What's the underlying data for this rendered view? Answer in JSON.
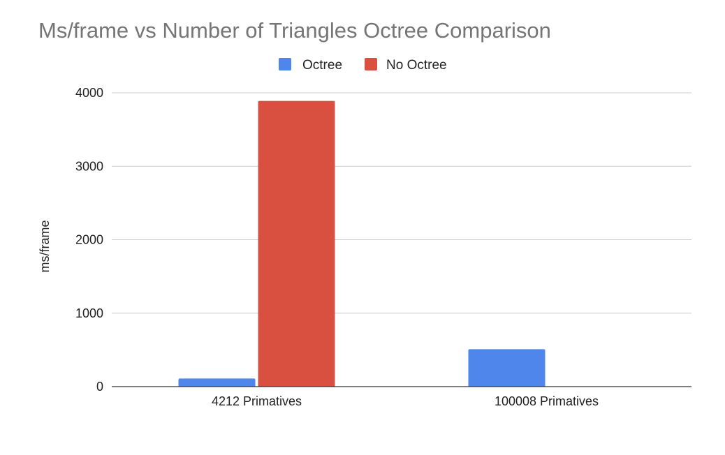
{
  "chart_data": {
    "type": "bar",
    "title": "Ms/frame vs Number of Triangles Octree Comparison",
    "xlabel": "",
    "ylabel": "ms/frame",
    "categories": [
      "4212 Primatives",
      "100008 Primatives"
    ],
    "series": [
      {
        "name": "Octree",
        "color": "#4f86ec",
        "values": [
          110,
          510
        ]
      },
      {
        "name": "No Octree",
        "color": "#d95040",
        "values": [
          3890,
          0
        ]
      }
    ],
    "ylim": [
      0,
      4000
    ],
    "yticks": [
      "0",
      "1000",
      "2000",
      "3000",
      "4000"
    ],
    "ytick_values": [
      0,
      1000,
      2000,
      3000,
      4000
    ],
    "grid": true,
    "legend_position": "top-center"
  }
}
